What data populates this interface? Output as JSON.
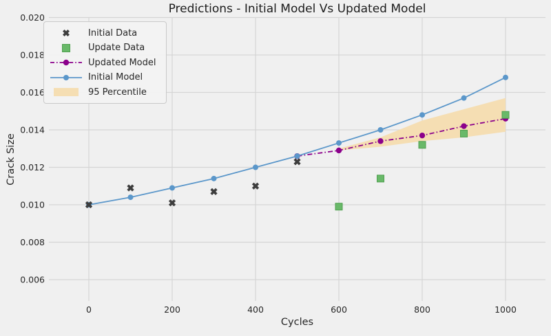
{
  "figure": {
    "title": "Predictions - Initial Model Vs Updated Model",
    "xlabel": "Cycles",
    "ylabel": "Crack Size"
  },
  "colors": {
    "background": "#f0f0f0",
    "grid": "#d5d5d5",
    "text": "#262626",
    "initial_data": "#3d3d3d",
    "update_data_fill": "#69b969",
    "update_data_edge": "#4f9f4f",
    "updated_model": "#8b008b",
    "initial_model": "#5b97ca",
    "band": "#f5deb3"
  },
  "legend": {
    "position": "upper left",
    "entries": [
      {
        "label": "Initial Data",
        "marker": "x-marker"
      },
      {
        "label": "Update Data",
        "marker": "square-marker"
      },
      {
        "label": "Updated Model",
        "marker": "dashdot-line"
      },
      {
        "label": "Initial Model",
        "marker": "solid-line"
      },
      {
        "label": "95 Percentile",
        "marker": "band-patch"
      }
    ]
  },
  "chart_data": {
    "type": "line",
    "title": "Predictions - Initial Model Vs Updated Model",
    "xlabel": "Cycles",
    "ylabel": "Crack Size",
    "xlim": [
      -96,
      1096
    ],
    "ylim": [
      0.0049,
      0.02
    ],
    "grid": true,
    "legend_position": "upper left",
    "x_ticks": [
      {
        "value": 0,
        "label": "0"
      },
      {
        "value": 200,
        "label": "200"
      },
      {
        "value": 400,
        "label": "400"
      },
      {
        "value": 600,
        "label": "600"
      },
      {
        "value": 800,
        "label": "800"
      },
      {
        "value": 1000,
        "label": "1000"
      }
    ],
    "y_ticks": [
      {
        "value": 0.006,
        "label": "0.006"
      },
      {
        "value": 0.008,
        "label": "0.008"
      },
      {
        "value": 0.01,
        "label": "0.010"
      },
      {
        "value": 0.012,
        "label": "0.012"
      },
      {
        "value": 0.014,
        "label": "0.014"
      },
      {
        "value": 0.016,
        "label": "0.016"
      },
      {
        "value": 0.018,
        "label": "0.018"
      },
      {
        "value": 0.02,
        "label": "0.020"
      }
    ],
    "series": [
      {
        "name": "Initial Data",
        "type": "scatter",
        "marker": "X",
        "color": "#3d3d3d",
        "x": [
          0,
          100,
          200,
          300,
          400,
          500
        ],
        "y": [
          0.01,
          0.0109,
          0.0101,
          0.0107,
          0.011,
          0.0123
        ]
      },
      {
        "name": "Update Data",
        "type": "scatter",
        "marker": "square",
        "color": "#69b969",
        "x": [
          600,
          700,
          800,
          900,
          1000
        ],
        "y": [
          0.0099,
          0.0114,
          0.0132,
          0.0138,
          0.0148
        ]
      },
      {
        "name": "Updated Model",
        "type": "line",
        "linestyle": "dashdot",
        "marker": "circle",
        "color": "#8b008b",
        "x": [
          500,
          600,
          700,
          800,
          900,
          1000
        ],
        "y": [
          0.0126,
          0.0129,
          0.0134,
          0.0137,
          0.0142,
          0.0146
        ]
      },
      {
        "name": "Initial Model",
        "type": "line",
        "linestyle": "solid",
        "marker": "circle",
        "color": "#5b97ca",
        "x": [
          0,
          100,
          200,
          300,
          400,
          500,
          600,
          700,
          800,
          900,
          1000
        ],
        "y": [
          0.01,
          0.0104,
          0.0109,
          0.0114,
          0.012,
          0.0126,
          0.0133,
          0.014,
          0.0148,
          0.0157,
          0.0168
        ]
      },
      {
        "name": "95 Percentile",
        "type": "band",
        "color": "#f5deb3",
        "x": [
          600,
          700,
          800,
          900,
          1000
        ],
        "lower": [
          0.0129,
          0.0131,
          0.0134,
          0.0136,
          0.0139
        ],
        "upper": [
          0.013,
          0.0136,
          0.0145,
          0.0151,
          0.0157
        ]
      }
    ]
  }
}
